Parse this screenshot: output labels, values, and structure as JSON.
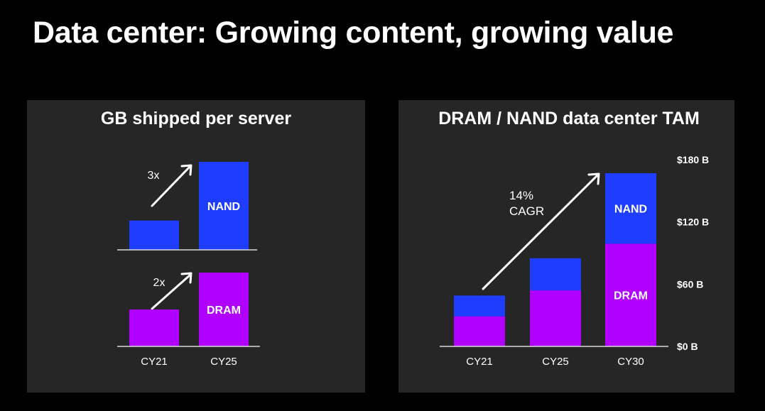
{
  "slide": {
    "title": "Data center: Growing content, growing value"
  },
  "colors": {
    "nand": "#1f3dff",
    "dram": "#b000ff",
    "panel": "#262626",
    "background": "#000000"
  },
  "chart_data": [
    {
      "type": "bar",
      "title": "GB shipped per server",
      "categories": [
        "CY21",
        "CY25"
      ],
      "panels": [
        {
          "series": "NAND",
          "label": "NAND",
          "multiplier": "3x",
          "values": [
            1,
            3
          ]
        },
        {
          "series": "DRAM",
          "label": "DRAM",
          "multiplier": "2x",
          "values": [
            1,
            2
          ]
        }
      ],
      "xlabel": "",
      "ylabel": ""
    },
    {
      "type": "bar",
      "stacked": true,
      "title": "DRAM / NAND data center TAM",
      "categories": [
        "CY21",
        "CY25",
        "CY30"
      ],
      "series": [
        {
          "name": "DRAM",
          "values": [
            29,
            54,
            99
          ]
        },
        {
          "name": "NAND",
          "values": [
            20,
            31,
            68
          ]
        }
      ],
      "annotation": {
        "line1": "14%",
        "line2": "CAGR"
      },
      "yticks": [
        "$0 B",
        "$60 B",
        "$120 B",
        "$180 B"
      ],
      "ytick_values": [
        0,
        60,
        120,
        180
      ],
      "ylim": [
        0,
        180
      ],
      "xlabel": "",
      "ylabel": ""
    }
  ]
}
